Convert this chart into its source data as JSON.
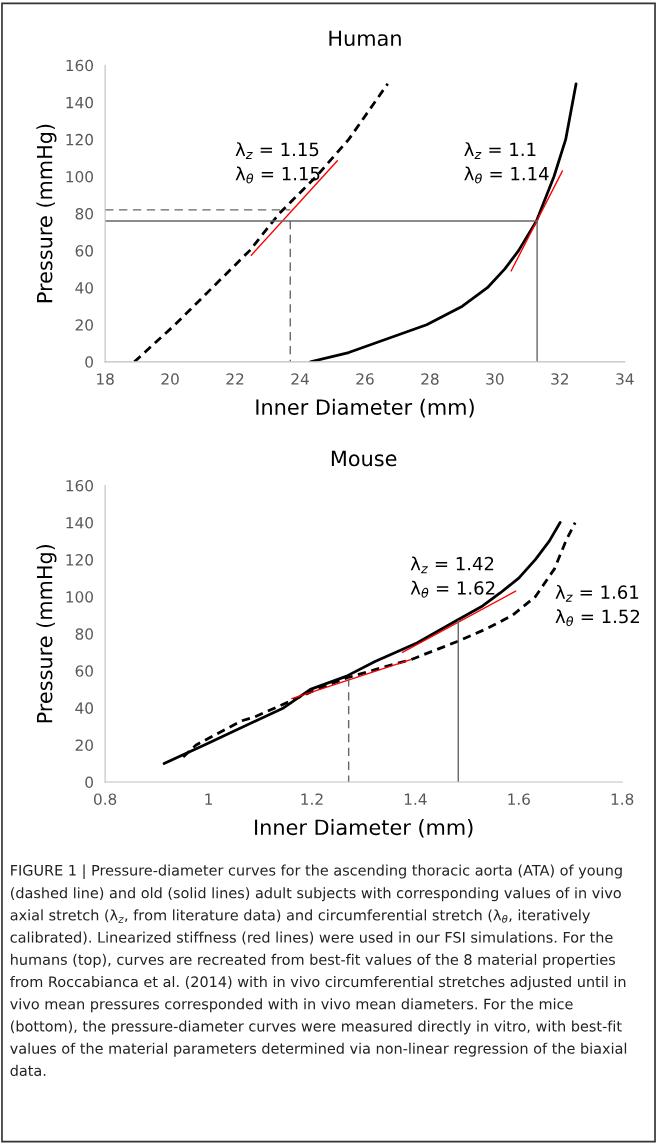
{
  "chart_data": [
    {
      "type": "line",
      "title": "Human",
      "xlabel": "Inner Diameter (mm)",
      "ylabel": "Pressure (mmHg)",
      "xlim": [
        18,
        34
      ],
      "ylim": [
        0,
        160
      ],
      "xticks": [
        18,
        20,
        22,
        24,
        26,
        28,
        30,
        32,
        34
      ],
      "yticks": [
        0,
        20,
        40,
        60,
        80,
        100,
        120,
        140,
        160
      ],
      "series": [
        {
          "color": "#000000",
          "line_style": "dashed",
          "x": [
            18.9,
            20.15,
            21.3,
            22.45,
            23.36,
            24.5,
            25.5,
            26.7
          ],
          "values": [
            0,
            20,
            40,
            60,
            80,
            100,
            120,
            150
          ]
        },
        {
          "color": "#000000",
          "line_style": "solid",
          "x": [
            24.32,
            25.5,
            26.3,
            27.9,
            29.0,
            29.77,
            30.3,
            30.73,
            31.28,
            31.82,
            32.18,
            32.5
          ],
          "values": [
            0,
            5,
            10,
            20,
            30,
            40,
            50,
            60,
            76,
            100,
            120,
            150
          ]
        },
        {
          "color": "#ff0000",
          "line_style": "solid",
          "x": [
            22.5,
            25.15
          ],
          "values": [
            57.5,
            108.5
          ]
        },
        {
          "color": "#ff0000",
          "line_style": "solid",
          "x": [
            30.5,
            32.08
          ],
          "values": [
            49,
            103
          ]
        },
        {
          "color": "#666666",
          "line_style": "dashed",
          "x": [
            18,
            23.7
          ],
          "values": [
            82,
            82
          ]
        },
        {
          "color": "#666666",
          "line_style": "dashed",
          "x": [
            23.7,
            23.7
          ],
          "values": [
            76,
            0
          ]
        },
        {
          "color": "#666666",
          "line_style": "solid",
          "x": [
            18,
            31.3
          ],
          "values": [
            76,
            76
          ]
        },
        {
          "color": "#666666",
          "line_style": "solid",
          "x": [
            31.3,
            31.3
          ],
          "values": [
            76,
            0
          ]
        }
      ],
      "annotations": [
        "λ$_{z}$ = 1.15\nλ$_{θ}$ = 1.15",
        "λ$_{z}$ = 1.1\nλ$_{θ}$ = 1.14"
      ]
    },
    {
      "type": "line",
      "title": "Mouse",
      "xlabel": "Inner Diameter (mm)",
      "ylabel": "Pressure (mmHg)",
      "xlim": [
        0.8,
        1.8
      ],
      "ylim": [
        0,
        160
      ],
      "xticks": [
        0.8,
        1,
        1.2,
        1.4,
        1.6,
        1.8
      ],
      "yticks": [
        0,
        20,
        40,
        60,
        80,
        100,
        120,
        140,
        160
      ],
      "series": [
        {
          "color": "#000000",
          "line_style": "solid",
          "x": [
            0.914,
            0.992,
            1.145,
            1.197,
            1.266,
            1.322,
            1.403,
            1.479,
            1.53,
            1.564,
            1.6,
            1.632,
            1.659,
            1.68
          ],
          "values": [
            10,
            20,
            40,
            50,
            57,
            65,
            75,
            87,
            95,
            102,
            110,
            120,
            130,
            140
          ]
        },
        {
          "color": "#000000",
          "line_style": "dashed",
          "x": [
            0.951,
            0.976,
            1.064,
            1.088,
            1.161,
            1.209,
            1.266,
            1.338,
            1.391,
            1.483,
            1.54,
            1.588,
            1.632,
            1.669,
            1.691,
            1.709
          ],
          "values": [
            13.5,
            20,
            33,
            35,
            44,
            50,
            56,
            62,
            66,
            76,
            83,
            90,
            100,
            115,
            130,
            140
          ]
        },
        {
          "color": "#ff0000",
          "line_style": "solid",
          "x": [
            1.161,
            1.391
          ],
          "values": [
            45,
            66
          ]
        },
        {
          "color": "#ff0000",
          "line_style": "solid",
          "x": [
            1.375,
            1.594
          ],
          "values": [
            70,
            103
          ]
        },
        {
          "color": "#666666",
          "line_style": "dashed",
          "x": [
            1.271,
            1.271
          ],
          "values": [
            56,
            0
          ]
        },
        {
          "color": "#666666",
          "line_style": "solid",
          "x": [
            1.483,
            1.483
          ],
          "values": [
            87,
            0
          ]
        }
      ],
      "annotations": [
        "λ$_{z}$ = 1.42\nλ$_{θ}$ = 1.62",
        "λ$_{z}$ = 1.61\nλ$_{θ}$ = 1.52",
        "FIGURE 1 | Pressure-diameter curves for the ascending thoracic aorta (ATA) of young (dashed line) and old (solid lines) adult subjects with corresponding values of in vivo axial stretch (λ$_{z}$, from literature data) and circumferential stretch (λ$_{θ}$, iteratively calibrated). Linearized stiffness (red lines) were used in our FSI simulations. For the humans (top), curves are recreated from best-fit values of the 8 material properties from Roccabianca et al. (2014) with in vivo circumferential stretches adjusted until in vivo mean pressures corresponded with in vivo mean diameters. For the mice (bottom), the pressure-diameter curves were measured directly in vitro, with best-fit values of the material parameters determined via non-linear regression of the biaxial data."
      ]
    }
  ]
}
